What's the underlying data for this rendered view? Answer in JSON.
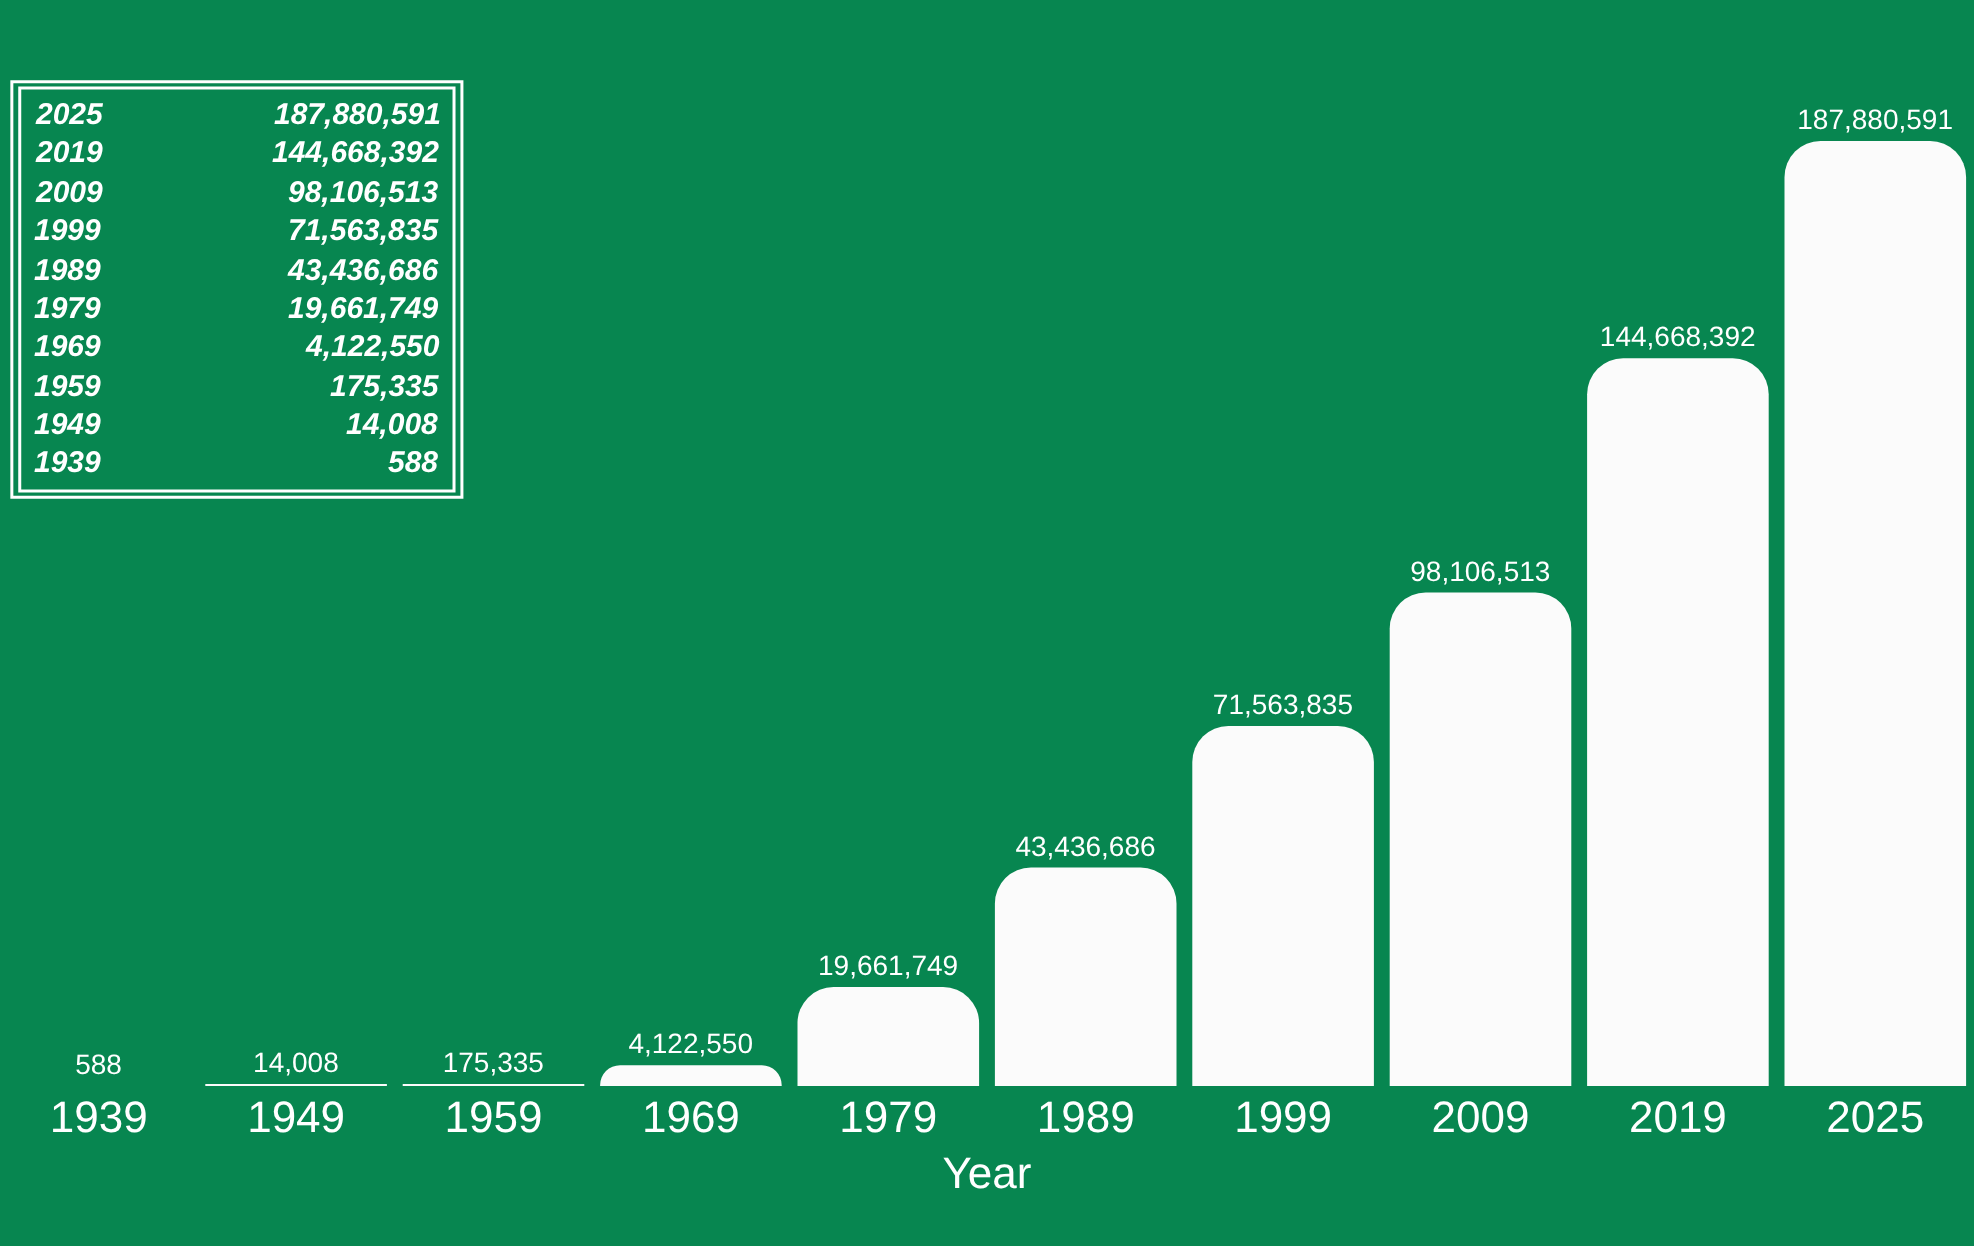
{
  "chart_data": {
    "type": "bar",
    "xlabel": "Year",
    "categories": [
      "1939",
      "1949",
      "1959",
      "1969",
      "1979",
      "1989",
      "1999",
      "2009",
      "2019",
      "2025"
    ],
    "values": [
      588,
      14008,
      175335,
      4122550,
      19661749,
      43436686,
      71563835,
      98106513,
      144668392,
      187880591
    ],
    "value_labels": [
      "588",
      "14,008",
      "175,335",
      "4,122,550",
      "19,661,749",
      "43,436,686",
      "71,563,835",
      "98,106,513",
      "144,668,392",
      "187,880,591"
    ],
    "color": "#fbfbfb",
    "ylim": [
      0,
      200000000
    ],
    "tick_labels": "x",
    "grid": false
  }
}
